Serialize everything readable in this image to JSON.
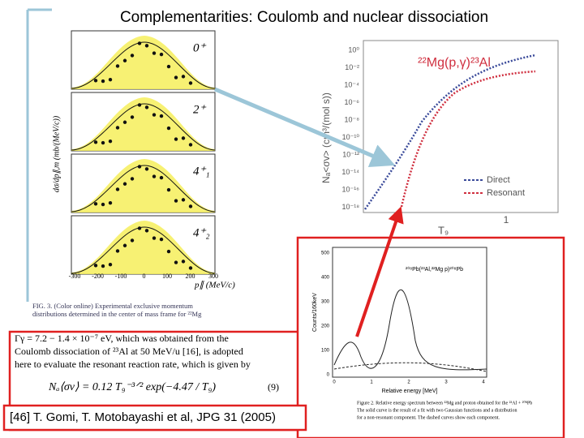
{
  "title": "Complementarities: Coulomb  and nuclear dissociation",
  "left_figure": {
    "y_label": "dσ/dp∥,m (mb/(MeV/c))",
    "panel_labels": [
      "0⁺",
      "2⁺",
      "4⁺₁",
      "4⁺₂"
    ],
    "x_label": "p∥ (MeV/c)",
    "x_ticks": [
      "-300",
      "-200",
      "-100",
      "0",
      "100",
      "200",
      "300"
    ],
    "caption": [
      "FIG. 3.  (Color online)  Experimental exclusive momentum",
      "distributions determined in the center of mass frame for ²²Mg"
    ]
  },
  "rate_plot": {
    "reaction": "²²Mg(p,γ)²³Al",
    "y_label": "Nₐ<σv> (cm³/(mol s))",
    "y_ticks": [
      "10⁰",
      "10⁻²",
      "10⁻⁴",
      "10⁻⁶",
      "10⁻⁸",
      "10⁻¹⁰",
      "10⁻¹²",
      "10⁻¹⁴",
      "10⁻¹⁶",
      "10⁻¹⁸"
    ],
    "x_label": "T₉",
    "x_tick": "1",
    "legend": [
      "Direct",
      "Resonant"
    ]
  },
  "text_excerpt": {
    "lines": [
      "Γγ = 7.2 − 1.4 × 10⁻⁷ eV, which was obtained from the",
      "Coulomb dissociation of ²³Al at 50 MeV/u [16], is adopted",
      "here to evaluate the resonant reaction rate, which is given by"
    ],
    "equation": "Nₐ⟨σv⟩ = 0.12 T₉⁻³ᐟ² exp(−4.47 / T₉)",
    "equation_number": "(9)"
  },
  "spectrum": {
    "y_label": "Counts/160keV",
    "x_label": "Relative energy [MeV]",
    "reaction": "²⁰⁸Pb(²³Al,²²Mg p)²⁰⁸Pb",
    "y_ticks": [
      "500",
      "400",
      "300",
      "200",
      "100",
      "0"
    ],
    "x_ticks": [
      "0",
      "1",
      "2",
      "3",
      "4"
    ],
    "caption": [
      "Figure 2.  Relative energy spectrum between ²²Mg and proton obtained for the ²³Al + ²⁰⁸Pb",
      "The solid curve is the result of a fit with two Gaussian functions and a distribution",
      "for a non-resonant component. The dashed curves show each component."
    ]
  },
  "citation": "[46] T. Gomi, T. Motobayashi et al, JPG 31 (2005)"
}
